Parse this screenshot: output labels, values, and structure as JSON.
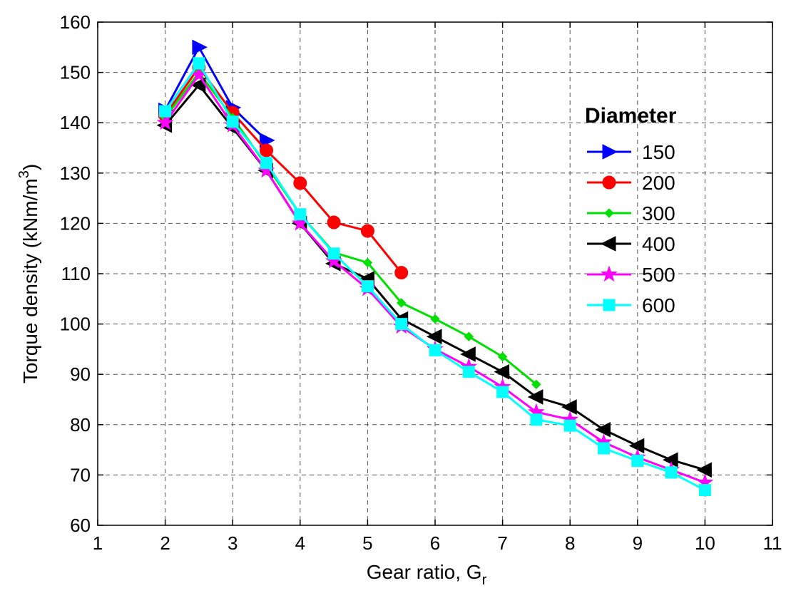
{
  "chart_data": {
    "type": "line",
    "xlabel": "Gear ratio, G",
    "xlabel_sub": "r",
    "ylabel": "Torque density (kNm/m",
    "ylabel_sup": "3",
    "ylabel_close": ")",
    "xlim": [
      1,
      11
    ],
    "ylim": [
      60,
      160
    ],
    "xticks": [
      "1",
      "2",
      "3",
      "4",
      "5",
      "6",
      "7",
      "8",
      "9",
      "10",
      "11"
    ],
    "yticks": [
      "60",
      "70",
      "80",
      "90",
      "100",
      "110",
      "120",
      "130",
      "140",
      "150",
      "160"
    ],
    "grid": true,
    "legend_title": "Diameter",
    "legend_position": "right",
    "series": [
      {
        "name": "150",
        "color": "#0000ff",
        "marker": "triangle-right",
        "x": [
          2,
          2.5,
          3,
          3.5
        ],
        "y": [
          142.5,
          155,
          143,
          136.5
        ]
      },
      {
        "name": "200",
        "color": "#ff0000",
        "marker": "circle",
        "x": [
          2,
          2.5,
          3,
          3.5,
          4,
          4.5,
          5,
          5.5
        ],
        "y": [
          141.5,
          151,
          142,
          134.5,
          128,
          120.2,
          118.5,
          110.2
        ]
      },
      {
        "name": "300",
        "color": "#00e000",
        "marker": "diamond",
        "x": [
          2,
          2.5,
          3,
          3.5,
          4,
          4.5,
          5,
          5.5,
          6,
          6.5,
          7,
          7.5
        ],
        "y": [
          141,
          150,
          141,
          131.5,
          121.8,
          114.2,
          112.2,
          104.2,
          101,
          97.5,
          93.5,
          88
        ]
      },
      {
        "name": "400",
        "color": "#000000",
        "marker": "triangle-left",
        "x": [
          2,
          2.5,
          3,
          3.5,
          4,
          4.5,
          5,
          5.5,
          6,
          6.5,
          7,
          7.5,
          8,
          8.5,
          9,
          9.5,
          10
        ],
        "y": [
          139.5,
          147.5,
          139,
          130.5,
          120,
          112,
          109,
          101,
          97.5,
          94,
          90.5,
          85.5,
          83.5,
          79,
          75.8,
          73,
          71
        ]
      },
      {
        "name": "500",
        "color": "#ff00ff",
        "marker": "star",
        "x": [
          2,
          2.5,
          3,
          3.5,
          4,
          4.5,
          5,
          5.5,
          6,
          6.5,
          7,
          7.5,
          8,
          8.5,
          9,
          9.5,
          10
        ],
        "y": [
          140,
          149.5,
          139.5,
          130.5,
          120,
          112.5,
          107,
          99.5,
          95,
          91.5,
          87.5,
          82.5,
          81,
          76.5,
          73.5,
          71,
          68.5
        ]
      },
      {
        "name": "600",
        "color": "#00ffff",
        "marker": "square",
        "x": [
          2,
          2.5,
          3,
          3.5,
          4,
          4.5,
          5,
          5.5,
          6,
          6.5,
          7,
          7.5,
          8,
          8.5,
          9,
          9.5,
          10
        ],
        "y": [
          142.3,
          151.8,
          140.2,
          132,
          121.8,
          114,
          107.5,
          100,
          94.8,
          90.5,
          86.5,
          81,
          79.8,
          75.3,
          72.8,
          70.5,
          67
        ]
      }
    ]
  }
}
